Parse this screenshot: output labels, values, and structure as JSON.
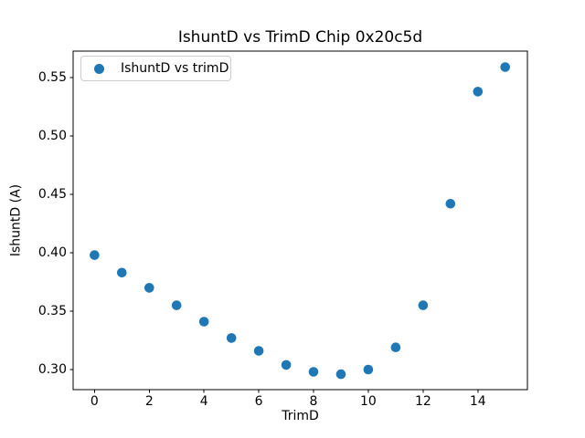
{
  "figure": {
    "background_color": "#ffffff",
    "spine_color": "#000000",
    "accent_color": "#1f77b4"
  },
  "chart_data": {
    "type": "scatter",
    "title": "IshuntD vs TrimD Chip 0x20c5d",
    "xlabel": "TrimD",
    "ylabel": "IshuntD (A)",
    "grid": false,
    "legend": {
      "position": "upper left",
      "entries": [
        {
          "label": "IshuntD vs trimD",
          "marker": "circle-icon",
          "marker_color": "#1f77b4"
        }
      ]
    },
    "series": [
      {
        "name": "IshuntD vs trimD",
        "marker_color": "#1f77b4",
        "x": [
          0,
          1,
          2,
          3,
          4,
          5,
          6,
          7,
          8,
          9,
          10,
          11,
          12,
          13,
          14,
          15
        ],
        "y": [
          0.398,
          0.383,
          0.37,
          0.355,
          0.341,
          0.327,
          0.316,
          0.304,
          0.298,
          0.296,
          0.3,
          0.319,
          0.355,
          0.442,
          0.538,
          0.559
        ]
      }
    ],
    "xlim": [
      -0.78,
      15.81
    ],
    "ylim": [
      0.2828,
      0.5727
    ],
    "xticks": [
      {
        "v": 0,
        "label": "0"
      },
      {
        "v": 2,
        "label": "2"
      },
      {
        "v": 4,
        "label": "4"
      },
      {
        "v": 6,
        "label": "6"
      },
      {
        "v": 8,
        "label": "8"
      },
      {
        "v": 10,
        "label": "10"
      },
      {
        "v": 12,
        "label": "12"
      },
      {
        "v": 14,
        "label": "14"
      }
    ],
    "yticks": [
      {
        "v": 0.3,
        "label": "0.30"
      },
      {
        "v": 0.35,
        "label": "0.35"
      },
      {
        "v": 0.4,
        "label": "0.40"
      },
      {
        "v": 0.45,
        "label": "0.45"
      },
      {
        "v": 0.5,
        "label": "0.50"
      },
      {
        "v": 0.55,
        "label": "0.55"
      }
    ]
  }
}
